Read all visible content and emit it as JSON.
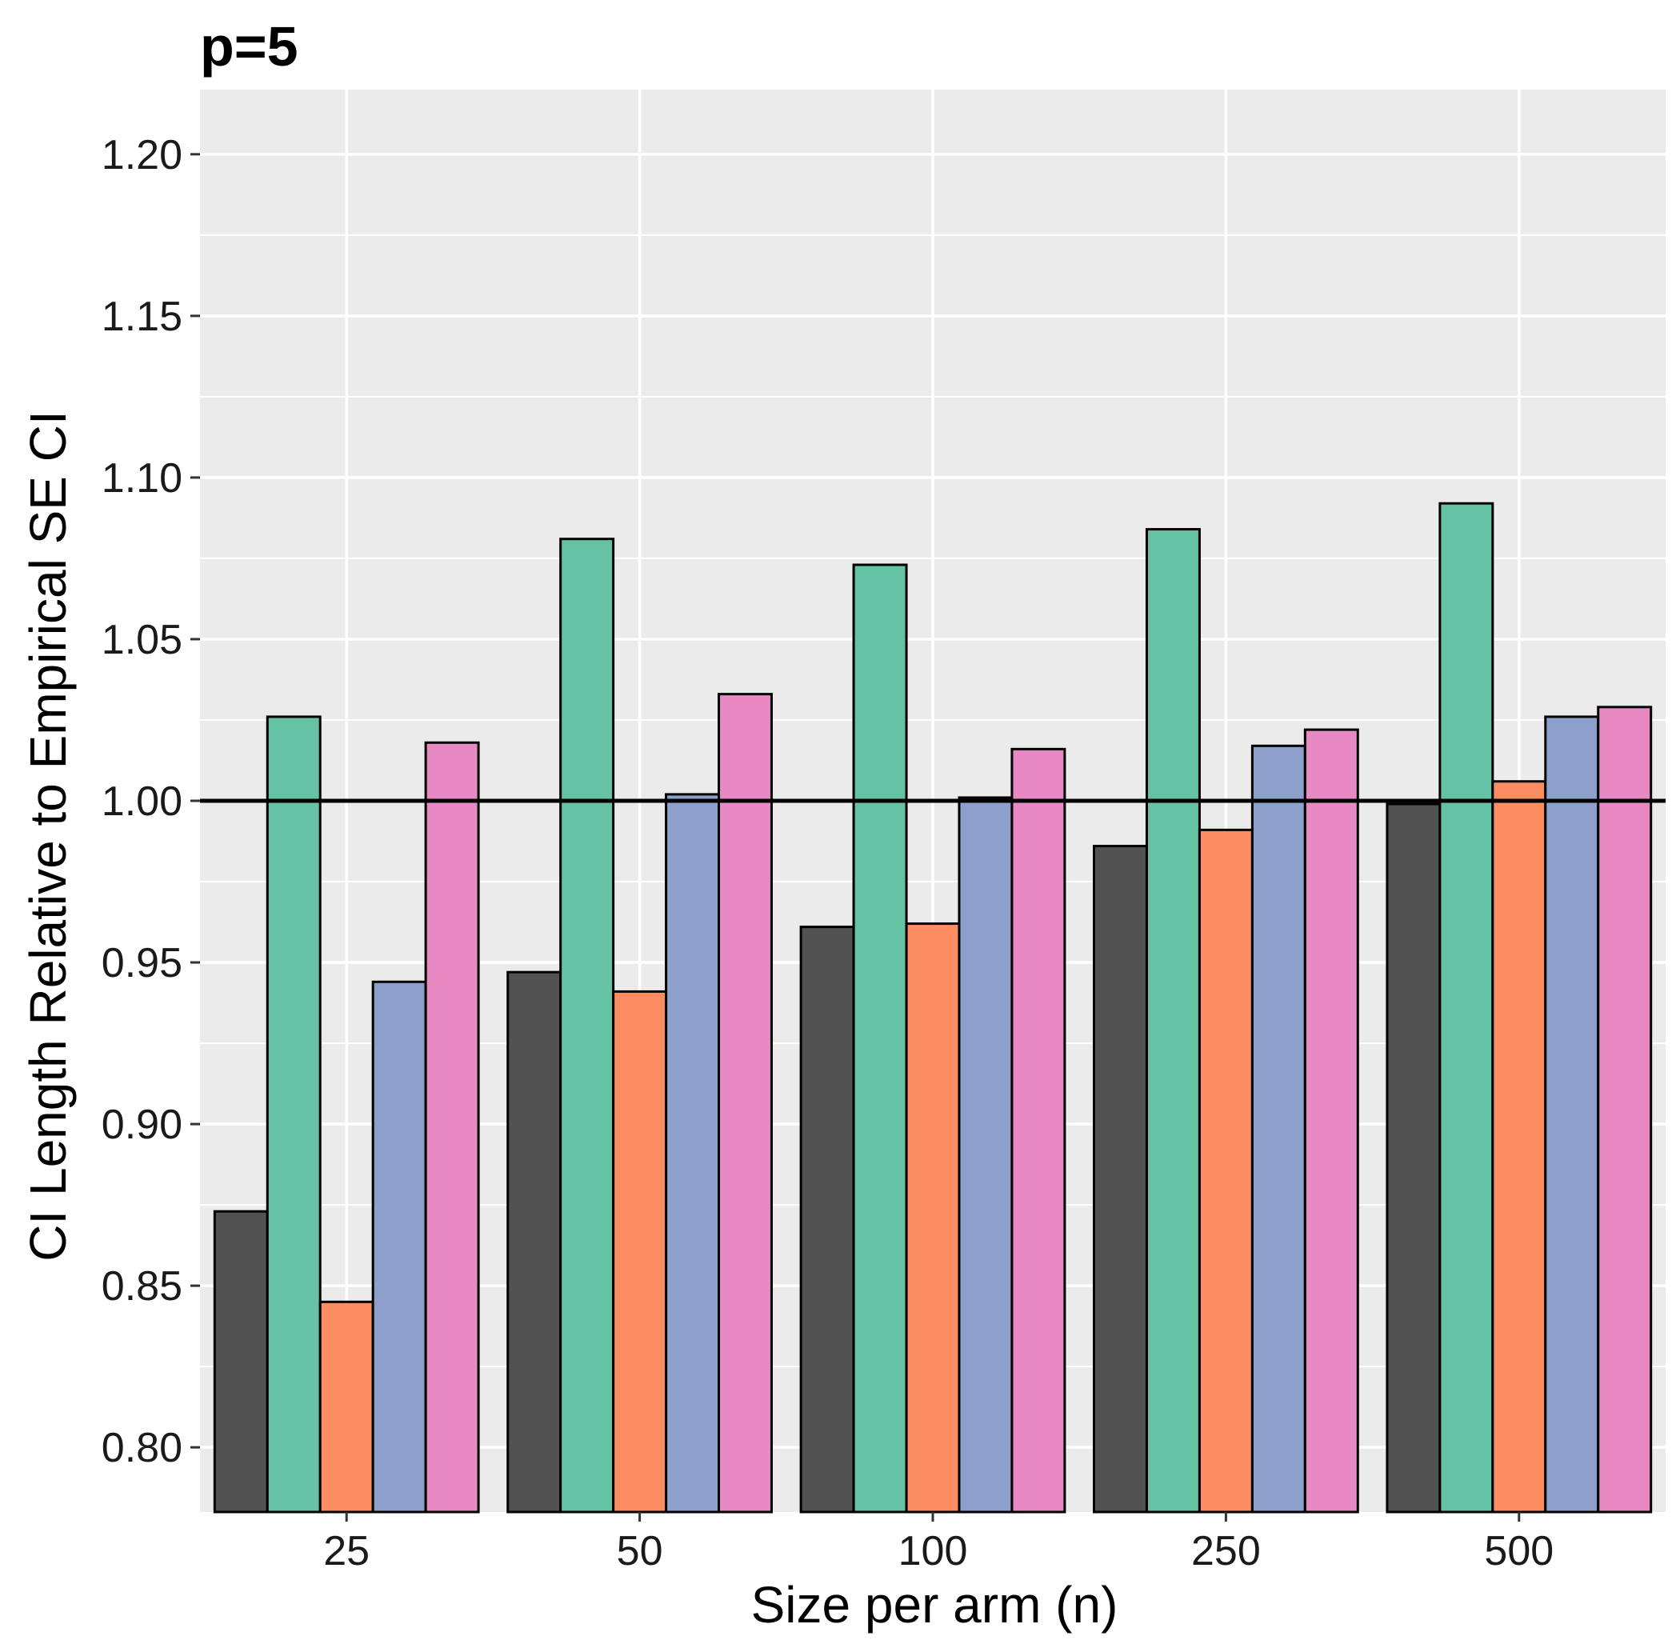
{
  "chart_data": {
    "type": "bar",
    "title": "p=5",
    "xlabel": "Size per arm (n)",
    "ylabel": "CI Length Relative to Empirical SE CI",
    "categories": [
      "25",
      "50",
      "100",
      "250",
      "500"
    ],
    "ylim": [
      0.78,
      1.22
    ],
    "y_ticks": [
      0.8,
      0.85,
      0.9,
      0.95,
      1.0,
      1.05,
      1.1,
      1.15,
      1.2
    ],
    "y_tick_labels": [
      "0.80",
      "0.85",
      "0.90",
      "0.95",
      "1.00",
      "1.05",
      "1.10",
      "1.15",
      "1.20"
    ],
    "reference_line": 1.0,
    "grid": true,
    "legend": "none",
    "series": [
      {
        "name": "series-1",
        "color": "#525252",
        "values": [
          0.873,
          0.947,
          0.961,
          0.986,
          0.999
        ]
      },
      {
        "name": "series-2",
        "color": "#66C2A5",
        "values": [
          1.026,
          1.081,
          1.073,
          1.084,
          1.092
        ]
      },
      {
        "name": "series-3",
        "color": "#FC8D62",
        "values": [
          0.845,
          0.941,
          0.962,
          0.991,
          1.006
        ]
      },
      {
        "name": "series-4",
        "color": "#8DA0CB",
        "values": [
          0.944,
          1.002,
          1.001,
          1.017,
          1.026
        ]
      },
      {
        "name": "series-5",
        "color": "#E78AC3",
        "values": [
          1.018,
          1.033,
          1.016,
          1.022,
          1.029
        ]
      }
    ],
    "panel_background": "#EBEBEB",
    "grid_color": "#FFFFFF"
  }
}
